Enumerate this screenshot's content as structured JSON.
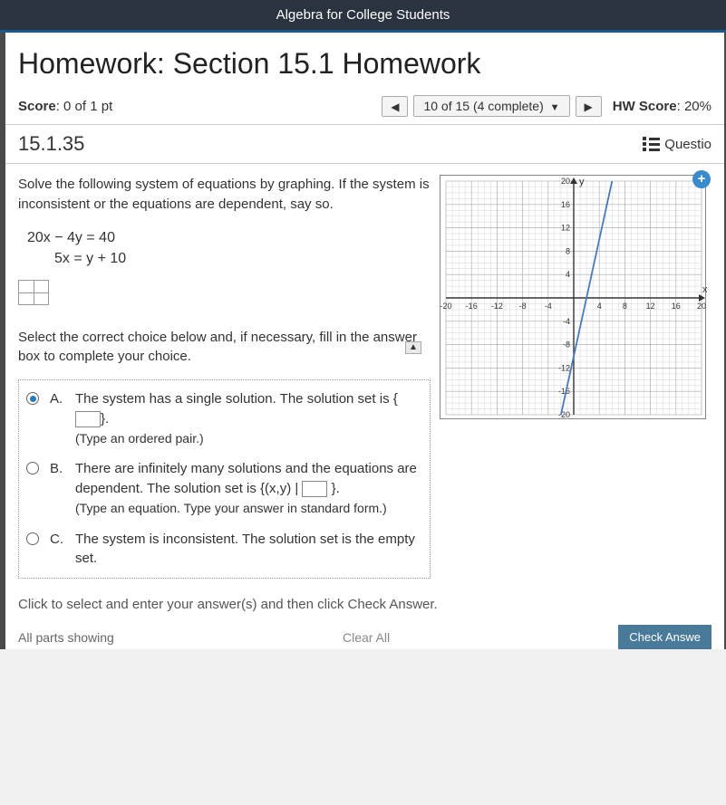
{
  "header": {
    "course_title": "Algebra for College Students"
  },
  "page": {
    "hw_title": "Homework: Section 15.1 Homework",
    "score_label": "Score",
    "score_value": "0 of 1 pt",
    "progress": "10 of 15 (4 complete)",
    "hw_score_label": "HW Score",
    "hw_score_value": "20%",
    "question_number": "15.1.35",
    "question_help": "Questio"
  },
  "problem": {
    "prompt": "Solve the following system of equations by graphing. If the system is inconsistent or the equations are dependent, say so.",
    "eq1": "20x − 4y = 40",
    "eq2": "5x = y + 10",
    "instruction": "Select the correct choice below and, if necessary, fill in the answer box to complete your choice."
  },
  "choices": {
    "a": {
      "letter": "A.",
      "text_1": "The system has a single solution. The solution set is {",
      "text_2": "}.",
      "hint": "(Type an ordered pair.)",
      "selected": true
    },
    "b": {
      "letter": "B.",
      "text_1": "There are infinitely many solutions and the equations are dependent. The solution set is {(x,y) |",
      "text_2": "}.",
      "hint": "(Type an equation. Type your answer in standard form.)",
      "selected": false
    },
    "c": {
      "letter": "C.",
      "text": "The system is inconsistent. The solution set is the empty set.",
      "selected": false
    }
  },
  "graph": {
    "xmin": -20,
    "xmax": 20,
    "ymin": -20,
    "ymax": 20,
    "xtick_step": 4,
    "ytick_step": 4,
    "x_label": "x",
    "y_label": "y",
    "x_ticks": [
      -20,
      -16,
      -12,
      -8,
      -4,
      4,
      8,
      12,
      16,
      20
    ],
    "y_ticks": [
      -20,
      -16,
      -12,
      -8,
      -4,
      4,
      8,
      12,
      16,
      20
    ],
    "minor_step": 1,
    "line_color": "#4a7ab8",
    "grid_color": "#cccccc",
    "grid_major_color": "#aaaaaa",
    "axis_color": "#333333",
    "line_p1": [
      -2,
      -20
    ],
    "line_p2": [
      6,
      20
    ]
  },
  "footer": {
    "bottom_instruction": "Click to select and enter your answer(s) and then click Check Answer.",
    "parts_text": "All parts showing",
    "clear_all": "Clear All",
    "check_answer": "Check Answe"
  }
}
